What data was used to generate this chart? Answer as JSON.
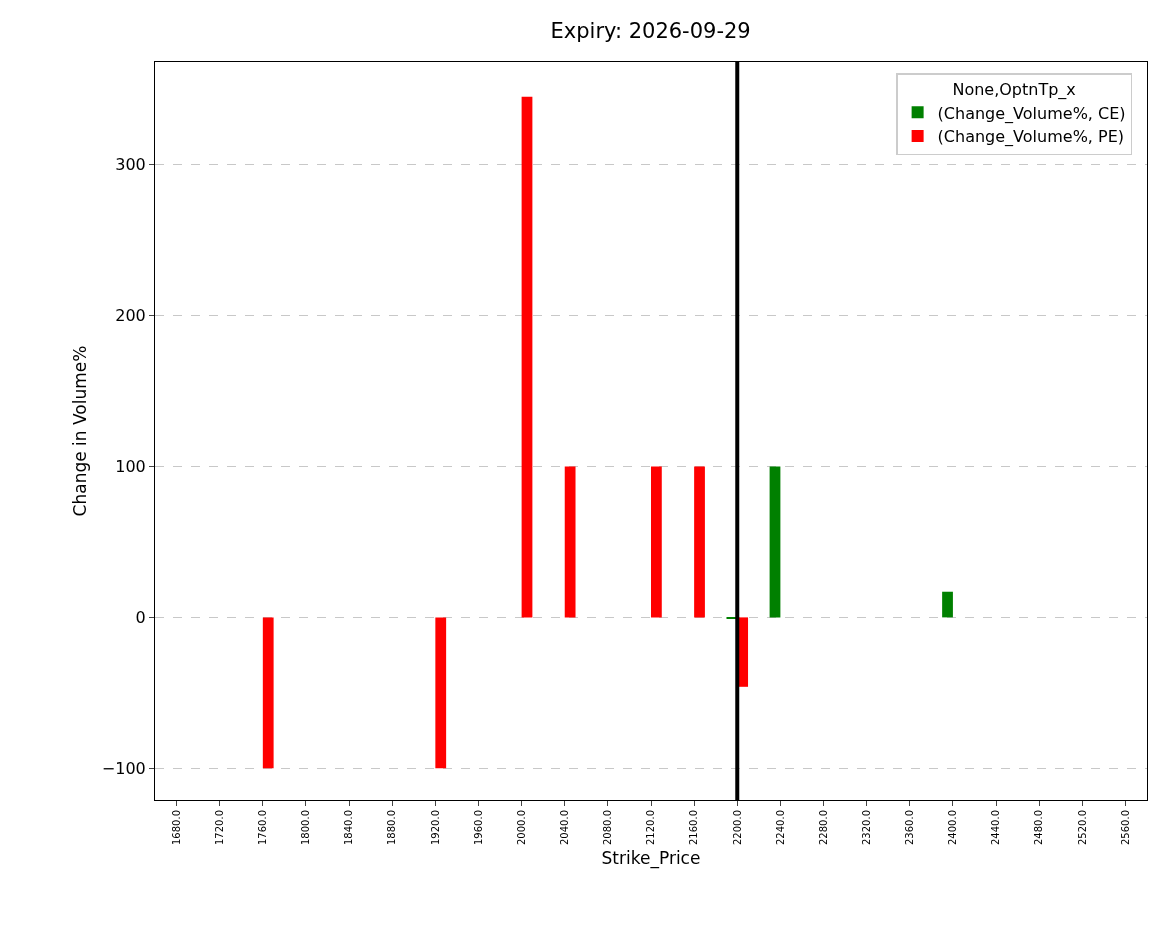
{
  "chart_data": {
    "type": "bar",
    "title": "Expiry: 2026-09-29",
    "xlabel": "Strike_Price",
    "ylabel": "Change in Volume%",
    "legend_title": "None,OptnTp_x",
    "categories": [
      "1680.0",
      "1720.0",
      "1760.0",
      "1800.0",
      "1840.0",
      "1880.0",
      "1920.0",
      "1960.0",
      "2000.0",
      "2040.0",
      "2080.0",
      "2120.0",
      "2160.0",
      "2200.0",
      "2240.0",
      "2280.0",
      "2320.0",
      "2360.0",
      "2400.0",
      "2440.0",
      "2480.0",
      "2520.0",
      "2560.0"
    ],
    "series": [
      {
        "name": "(Change_Volume%, CE)",
        "color": "#008000",
        "values": [
          null,
          null,
          null,
          null,
          null,
          null,
          null,
          null,
          null,
          null,
          null,
          null,
          null,
          -1,
          100,
          null,
          null,
          null,
          17,
          null,
          null,
          null,
          null
        ]
      },
      {
        "name": "(Change_Volume%, PE)",
        "color": "#ff0000",
        "values": [
          null,
          null,
          -100,
          null,
          null,
          null,
          -100,
          null,
          345,
          100,
          null,
          100,
          100,
          -46,
          null,
          null,
          null,
          null,
          null,
          null,
          null,
          null,
          null
        ]
      }
    ],
    "ylim": [
      -121,
      368
    ],
    "yticks": [
      {
        "value": -100,
        "label": "−100"
      },
      0,
      100,
      200,
      300
    ],
    "ref_lines": [
      {
        "axis": "x",
        "value": "2200.0",
        "color": "#000000",
        "line_style": "solid"
      }
    ],
    "grid": "y",
    "legend": "top right"
  }
}
